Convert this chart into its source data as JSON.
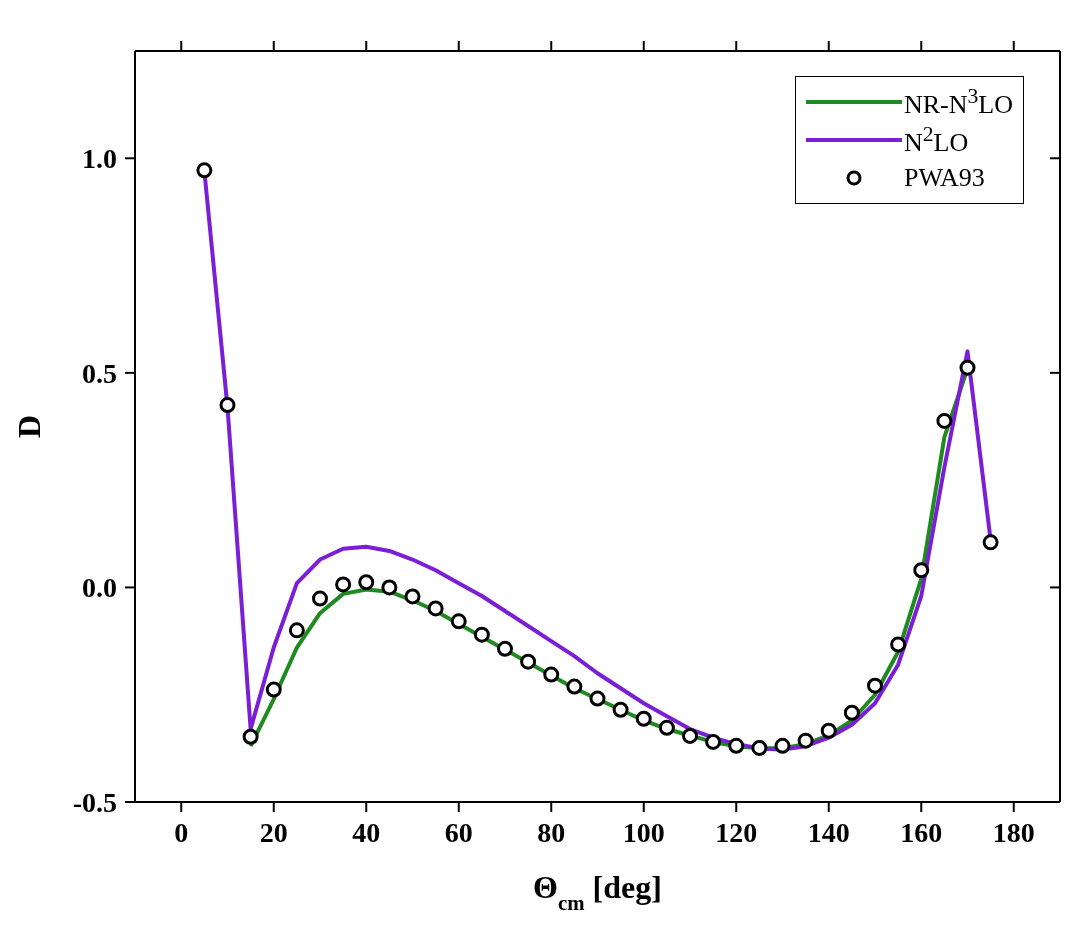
{
  "chart_data": {
    "type": "line",
    "xlabel": "Θ$_{cm}$ [deg]",
    "ylabel": "D",
    "x": [
      5,
      10,
      15,
      20,
      25,
      30,
      35,
      40,
      45,
      50,
      55,
      60,
      65,
      70,
      75,
      80,
      85,
      90,
      95,
      100,
      105,
      110,
      115,
      120,
      125,
      130,
      135,
      140,
      145,
      150,
      155,
      160,
      165,
      170,
      175
    ],
    "xlim": [
      -10,
      190
    ],
    "xticks": [
      0,
      20,
      40,
      60,
      80,
      100,
      120,
      140,
      160,
      180
    ],
    "ylim": [
      -0.5,
      1.25
    ],
    "yticks": [
      {
        "value": -0.5,
        "label": "-0.5"
      },
      {
        "value": 0,
        "label": "0.0"
      },
      {
        "value": 0.5,
        "label": "0.5"
      },
      {
        "value": 1,
        "label": "1.0"
      }
    ],
    "legend": "top right",
    "series": [
      {
        "name": "NR-N$^{3}$LO",
        "color": "#1f8a1f",
        "marker": "none",
        "values": [
          null,
          null,
          -0.37,
          -0.26,
          -0.14,
          -0.06,
          -0.015,
          -0.005,
          -0.01,
          -0.03,
          -0.055,
          -0.085,
          -0.115,
          -0.145,
          -0.175,
          -0.205,
          -0.235,
          -0.26,
          -0.285,
          -0.31,
          -0.33,
          -0.345,
          -0.36,
          -0.37,
          -0.375,
          -0.375,
          -0.365,
          -0.345,
          -0.31,
          -0.25,
          -0.15,
          0.02,
          0.35,
          0.51,
          null
        ]
      },
      {
        "name": "N$^{2}$LO",
        "color": "#7a1fd6",
        "marker": "none",
        "values": [
          0.97,
          0.42,
          -0.33,
          -0.14,
          0.01,
          0.065,
          0.09,
          0.095,
          0.085,
          0.065,
          0.04,
          0.01,
          -0.02,
          -0.055,
          -0.09,
          -0.125,
          -0.16,
          -0.2,
          -0.235,
          -0.27,
          -0.3,
          -0.33,
          -0.35,
          -0.365,
          -0.375,
          -0.378,
          -0.37,
          -0.35,
          -0.32,
          -0.27,
          -0.18,
          -0.02,
          0.28,
          0.55,
          0.11
        ]
      },
      {
        "name": "PWA93",
        "color": "#000000",
        "type": "scatter",
        "marker": "circle",
        "values": [
          0.972,
          0.425,
          -0.348,
          -0.238,
          -0.1,
          -0.026,
          0.007,
          0.012,
          0.0,
          -0.021,
          -0.049,
          -0.079,
          -0.11,
          -0.143,
          -0.173,
          -0.203,
          -0.231,
          -0.259,
          -0.285,
          -0.306,
          -0.327,
          -0.346,
          -0.36,
          -0.369,
          -0.374,
          -0.369,
          -0.357,
          -0.334,
          -0.292,
          -0.229,
          -0.133,
          0.04,
          0.388,
          0.512,
          0.105
        ]
      }
    ]
  }
}
